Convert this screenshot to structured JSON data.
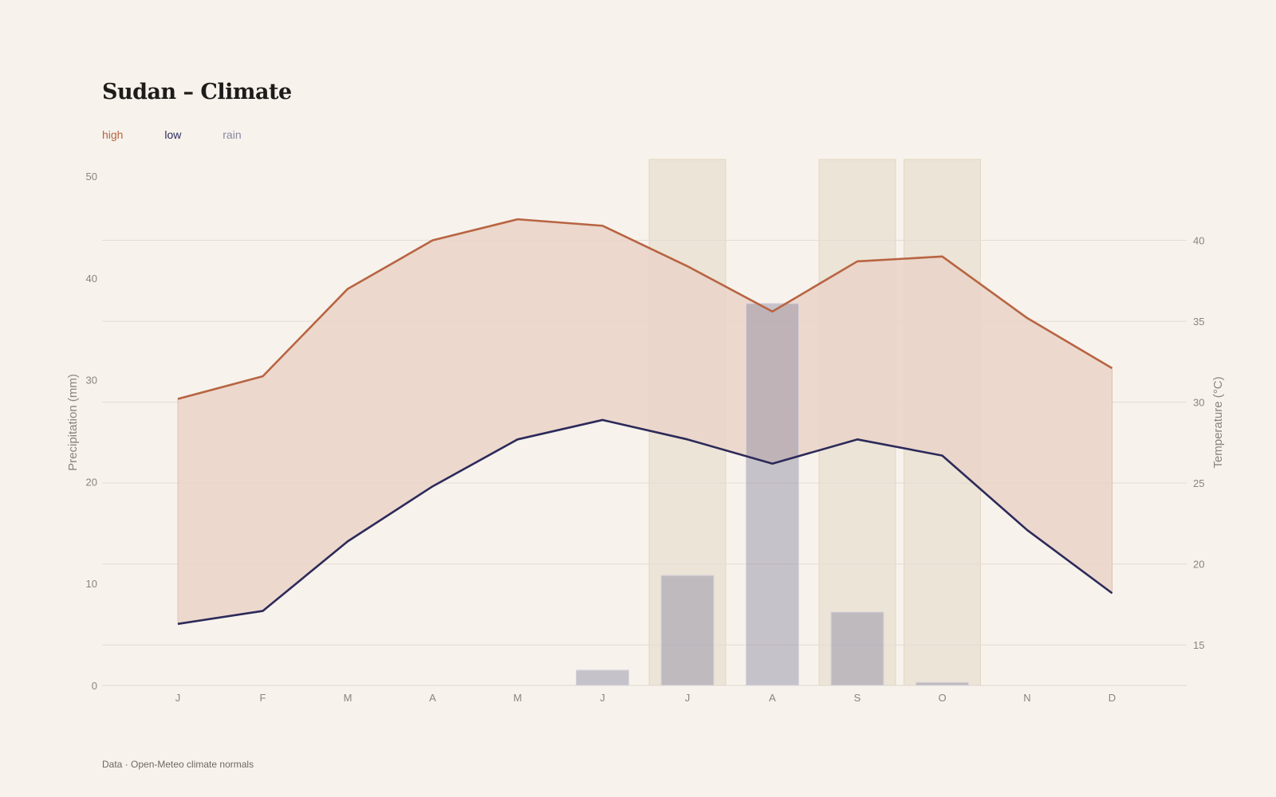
{
  "title": "Sudan – Climate",
  "legend": {
    "high": "high",
    "low": "low",
    "rain": "rain"
  },
  "footer": "Data · Open-Meteo climate normals",
  "colors": {
    "high": "#b86442",
    "low": "#2c2a5a",
    "rain": "#8a88a0",
    "band": "#ead3c8",
    "highlight": "#ece4d6",
    "grid": "#e3dcd4"
  },
  "chart_data": {
    "type": "line",
    "categories": [
      "J",
      "F",
      "M",
      "A",
      "M",
      "J",
      "J",
      "A",
      "S",
      "O",
      "N",
      "D"
    ],
    "series": [
      {
        "name": "high",
        "axis": "right",
        "values": [
          30.2,
          31.6,
          37.0,
          40.0,
          41.3,
          40.9,
          38.4,
          35.6,
          38.7,
          39.0,
          35.2,
          32.1
        ]
      },
      {
        "name": "low",
        "axis": "right",
        "values": [
          16.3,
          17.1,
          21.4,
          24.8,
          27.7,
          28.9,
          27.7,
          26.2,
          27.7,
          26.7,
          22.1,
          18.2
        ]
      },
      {
        "name": "rain",
        "axis": "left",
        "type": "bar",
        "values": [
          0,
          0,
          0,
          0,
          0,
          1.5,
          10.8,
          37.5,
          7.2,
          0.3,
          0,
          0
        ]
      }
    ],
    "highlight_months": [
      6,
      8,
      9
    ],
    "ylabel_left": "Precipitation (mm)",
    "ylabel_right": "Temperature (°C)",
    "ylim_left": [
      0,
      50
    ],
    "ylim_right": [
      12.5,
      45
    ],
    "yticks_left": [
      0,
      10,
      20,
      30,
      40,
      50
    ],
    "yticks_right": [
      15,
      20,
      25,
      30,
      35,
      40
    ],
    "grid": true
  }
}
